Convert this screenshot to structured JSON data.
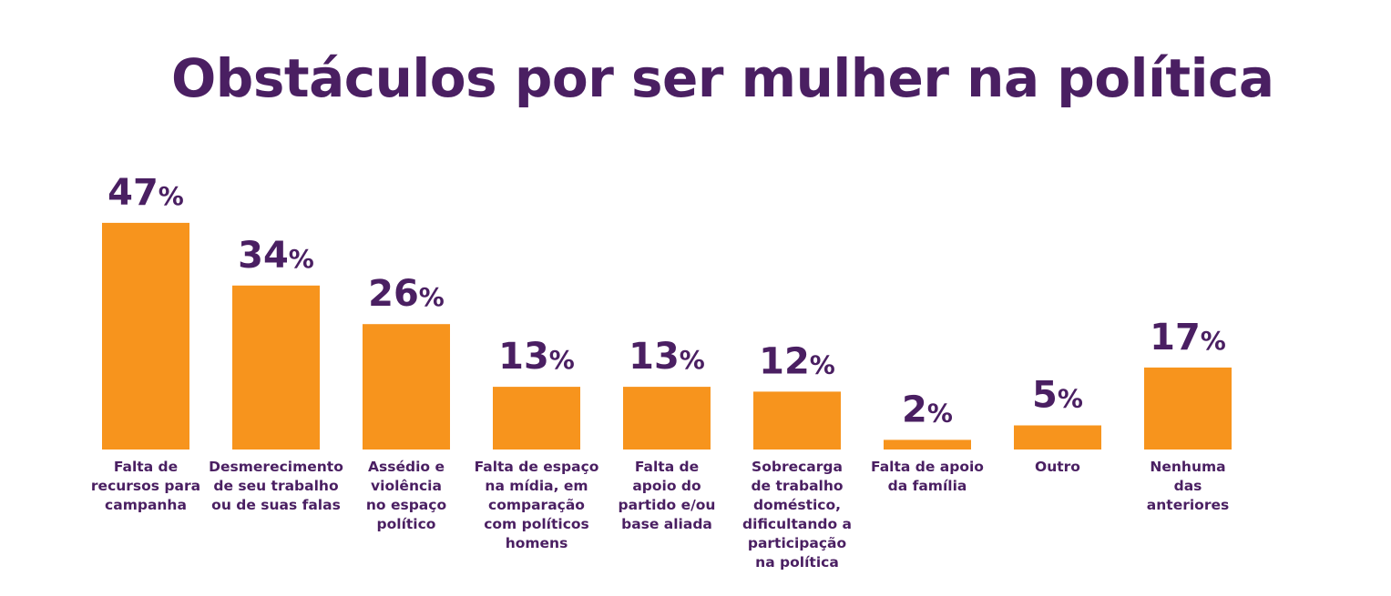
{
  "chart_data": {
    "type": "bar",
    "title": "Obstáculos por ser mulher na política",
    "xlabel": "",
    "ylabel": "",
    "ylim": [
      0,
      50
    ],
    "grid": false,
    "legend": "none",
    "value_suffix": "%",
    "categories": [
      [
        "Falta de",
        "recursos para",
        "campanha"
      ],
      [
        "Desmerecimento",
        "de seu trabalho",
        "ou de suas falas"
      ],
      [
        "Assédio e",
        "violência",
        "no espaço",
        "político"
      ],
      [
        "Falta de espaço",
        "na mídia, em",
        "comparação",
        "com políticos",
        "homens"
      ],
      [
        "Falta de",
        "apoio do",
        "partido e/ou",
        "base aliada"
      ],
      [
        "Sobrecarga",
        "de trabalho",
        "doméstico,",
        "dificultando a",
        "participação",
        "na política"
      ],
      [
        "Falta de apoio",
        "da família"
      ],
      [
        "Outro"
      ],
      [
        "Nenhuma",
        "das",
        "anteriores"
      ]
    ],
    "values": [
      47,
      34,
      26,
      13,
      13,
      12,
      2,
      5,
      17
    ],
    "bar_color": "#f7941d",
    "text_color": "#4a1f62"
  }
}
